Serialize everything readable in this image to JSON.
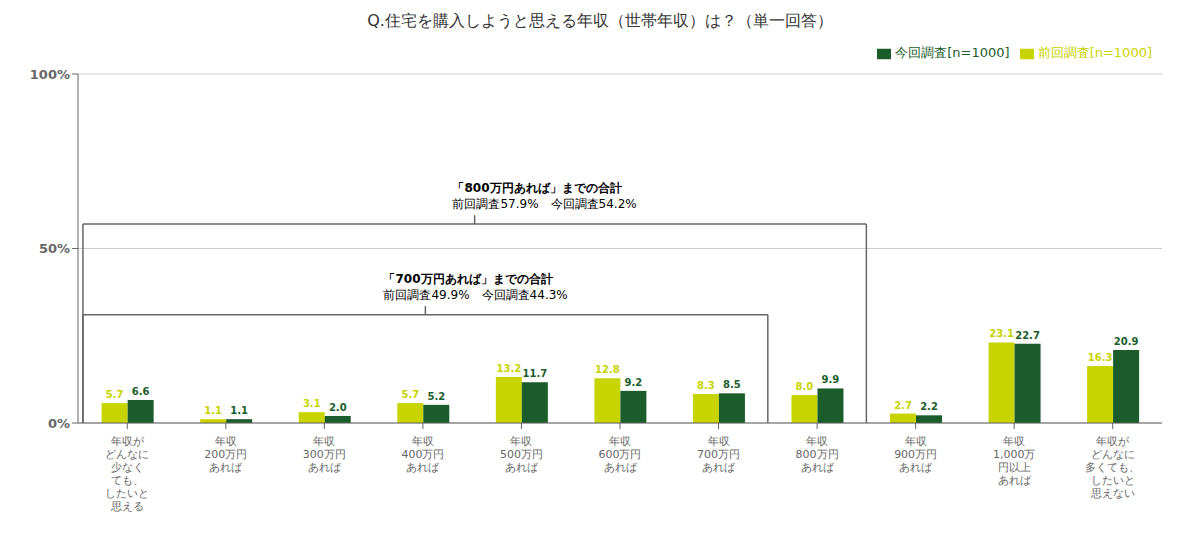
{
  "chart_data": {
    "type": "bar",
    "title": "Q.住宅を購入しようと思える年収（世帯年収）は？（単一回答）",
    "categories": [
      "年収が\nどんなに\n少なく\nても、\nしたいと\n思える",
      "年収\n200万円\nあれば",
      "年収\n300万円\nあれば",
      "年収\n400万円\nあれば",
      "年収\n500万円\nあれば",
      "年収\n600万円\nあれば",
      "年収\n700万円\nあれば",
      "年収\n800万円\nあれば",
      "年収\n900万円\nあれば",
      "年収\n1,000万\n円以上\nあれば",
      "年収が\nどんなに\n多くても、\nしたいと\n思えない"
    ],
    "series": [
      {
        "name": "前回調査[n=1000]",
        "color": "#c8d400",
        "values": [
          5.7,
          1.1,
          3.1,
          5.7,
          13.2,
          12.8,
          8.3,
          8.0,
          2.7,
          23.1,
          16.3
        ],
        "value_labels": [
          "5.7",
          "1.1",
          "3.1",
          "5.7",
          "13.2",
          "12.8",
          "8.3",
          "8.0",
          "2.7",
          "23.1",
          "16.3"
        ]
      },
      {
        "name": "今回調査[n=1000]",
        "color": "#1a5c2a",
        "values": [
          6.6,
          1.1,
          2.0,
          5.2,
          11.7,
          9.2,
          8.5,
          9.9,
          2.2,
          22.7,
          20.9
        ],
        "value_labels": [
          "6.6",
          "1.1",
          "2.0",
          "5.2",
          "11.7",
          "9.2",
          "8.5",
          "9.9",
          "2.2",
          "22.7",
          "20.9"
        ]
      }
    ],
    "ylim": [
      0,
      100
    ],
    "yticks": [
      {
        "value": 0,
        "label": "0%"
      },
      {
        "value": 50,
        "label": "50%"
      },
      {
        "value": 100,
        "label": "100%"
      }
    ],
    "grid": true,
    "legend": "upper right",
    "data_labels": true,
    "annotations": [
      "「700万円あれば」までの合計",
      "前回調査49.9%　今回調査44.3%",
      "「800万円あれば」までの合計",
      "前回調査57.9%　今回調査54.2%"
    ]
  }
}
